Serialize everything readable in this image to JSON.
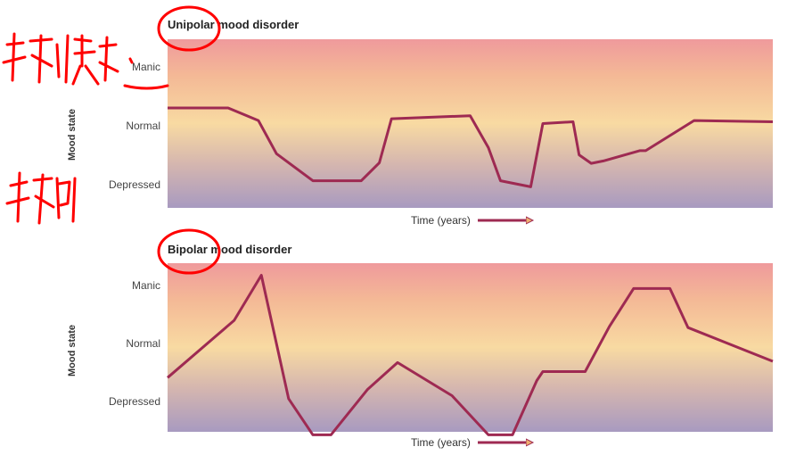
{
  "chart_data": [
    {
      "type": "line",
      "title": "Unipolar mood disorder",
      "xlabel": "Time (years)",
      "ylabel": "Mood state",
      "yticks": [
        "Manic",
        "Normal",
        "Depressed"
      ],
      "ylim": [
        -1.4,
        1.4
      ],
      "xlim": [
        0,
        100
      ],
      "series": [
        {
          "x": [
            0,
            10,
            15,
            18,
            24,
            32,
            35,
            37,
            50,
            53,
            55,
            60,
            62,
            67,
            68,
            70,
            72,
            78,
            79,
            87,
            100
          ],
          "y": [
            0.26,
            0.26,
            0.05,
            -0.5,
            -0.95,
            -0.95,
            -0.65,
            0.08,
            0.13,
            -0.4,
            -0.95,
            -1.05,
            0.0,
            0.03,
            -0.52,
            -0.66,
            -0.62,
            -0.45,
            -0.45,
            0.05,
            0.03
          ]
        }
      ],
      "color": "#9e2a52"
    },
    {
      "type": "line",
      "title": "Bipolar mood disorder",
      "xlabel": "Time (years)",
      "ylabel": "Mood state",
      "yticks": [
        "Manic",
        "Normal",
        "Depressed"
      ],
      "ylim": [
        -1.4,
        1.4
      ],
      "xlim": [
        0,
        100
      ],
      "series": [
        {
          "x": [
            0,
            11,
            15.5,
            20,
            24,
            27,
            33,
            38,
            47,
            53,
            57,
            61,
            62,
            69,
            73,
            77,
            83,
            86,
            100
          ],
          "y": [
            -0.5,
            0.45,
            1.2,
            -0.85,
            -1.45,
            -1.45,
            -0.7,
            -0.25,
            -0.8,
            -1.45,
            -1.45,
            -0.55,
            -0.4,
            -0.4,
            0.35,
            0.98,
            0.98,
            0.33,
            -0.23
          ]
        }
      ],
      "color": "#9e2a52"
    }
  ]
}
